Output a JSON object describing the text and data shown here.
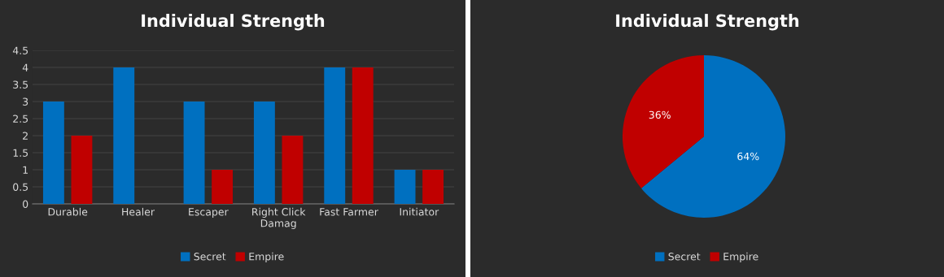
{
  "chart_data": [
    {
      "type": "bar",
      "title": "Individual Strength",
      "categories": [
        "Durable",
        "Healer",
        "Escaper",
        "Right Click Damag",
        "Fast Farmer",
        "Initiator"
      ],
      "series": [
        {
          "name": "Secret",
          "color": "#0070c0",
          "values": [
            3,
            4,
            3,
            3,
            4,
            1
          ]
        },
        {
          "name": "Empire",
          "color": "#c00000",
          "values": [
            2,
            null,
            1,
            2,
            4,
            1
          ]
        }
      ],
      "ylim": [
        0,
        4.5
      ],
      "yticks": [
        0,
        0.5,
        1,
        1.5,
        2,
        2.5,
        3,
        3.5,
        4,
        4.5
      ],
      "grid": "y",
      "legend": "bottom"
    },
    {
      "type": "pie",
      "title": "Individual Strength",
      "categories": [
        "Secret",
        "Empire"
      ],
      "values": [
        64,
        36
      ],
      "colors": [
        "#0070c0",
        "#c00000"
      ],
      "value_labels": [
        "64%",
        "36%"
      ],
      "legend": "bottom"
    }
  ]
}
